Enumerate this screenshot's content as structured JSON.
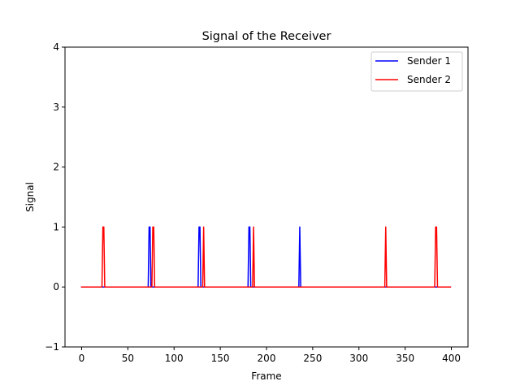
{
  "chart_data": {
    "type": "line",
    "title": "Signal of the Receiver",
    "xlabel": "Frame",
    "ylabel": "Signal",
    "xlim": [
      -18,
      418
    ],
    "ylim": [
      -1,
      4
    ],
    "xticks": [
      0,
      50,
      100,
      150,
      200,
      250,
      300,
      350,
      400
    ],
    "yticks": [
      -1,
      0,
      1,
      2,
      3,
      4
    ],
    "grid": false,
    "legend_position": "top-right",
    "series": [
      {
        "name": "Sender 1",
        "color": "#0000ff",
        "pulses": [
          [
            73,
            74
          ],
          [
            127,
            128
          ],
          [
            181,
            182
          ],
          [
            236,
            236
          ]
        ],
        "x_range": [
          0,
          399
        ]
      },
      {
        "name": "Sender 2",
        "color": "#ff0000",
        "pulses": [
          [
            23,
            24
          ],
          [
            77,
            78
          ],
          [
            132,
            132
          ],
          [
            186,
            186
          ],
          [
            329,
            329
          ],
          [
            383,
            384
          ]
        ],
        "x_range": [
          0,
          399
        ]
      }
    ]
  }
}
